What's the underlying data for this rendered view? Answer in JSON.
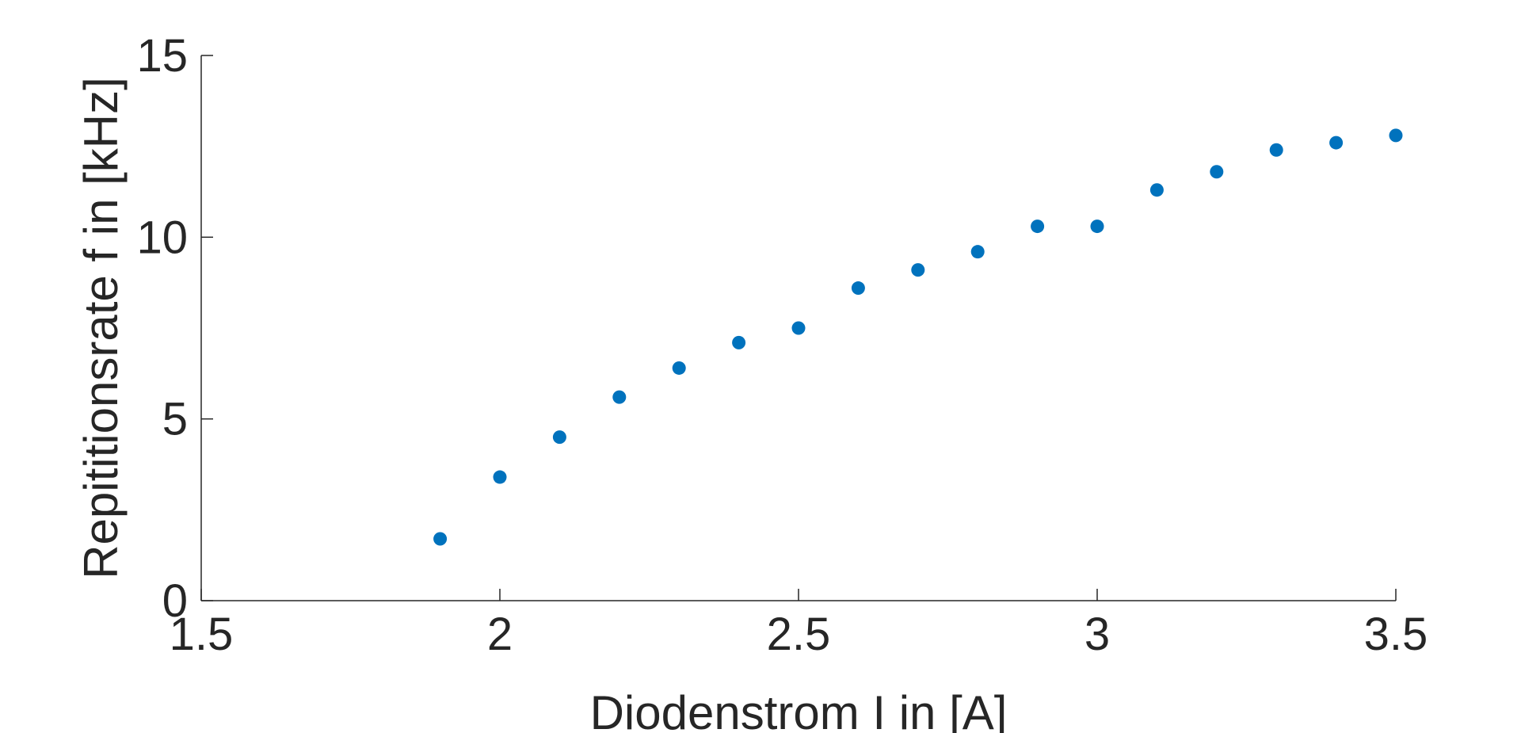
{
  "chart_data": {
    "type": "scatter",
    "title": "",
    "xlabel": "Diodenstrom I in [A]",
    "ylabel": "Repititionsrate f in [kHz]",
    "xlim": [
      1.5,
      3.5
    ],
    "ylim": [
      0,
      15
    ],
    "xticks": [
      "1.5",
      "2",
      "2.5",
      "3",
      "3.5"
    ],
    "yticks": [
      "0",
      "5",
      "10",
      "15"
    ],
    "grid": false,
    "marker_color": "#0072BD",
    "series": [
      {
        "x": [
          1.9,
          2.0,
          2.1,
          2.2,
          2.3,
          2.4,
          2.5,
          2.6,
          2.7,
          2.8,
          2.9,
          3.0,
          3.1,
          3.2,
          3.3,
          3.4,
          3.5
        ],
        "y": [
          1.7,
          3.4,
          4.5,
          5.6,
          6.4,
          7.1,
          7.5,
          8.6,
          9.1,
          9.6,
          10.3,
          10.3,
          11.3,
          11.8,
          12.4,
          12.6,
          12.8
        ]
      }
    ]
  }
}
